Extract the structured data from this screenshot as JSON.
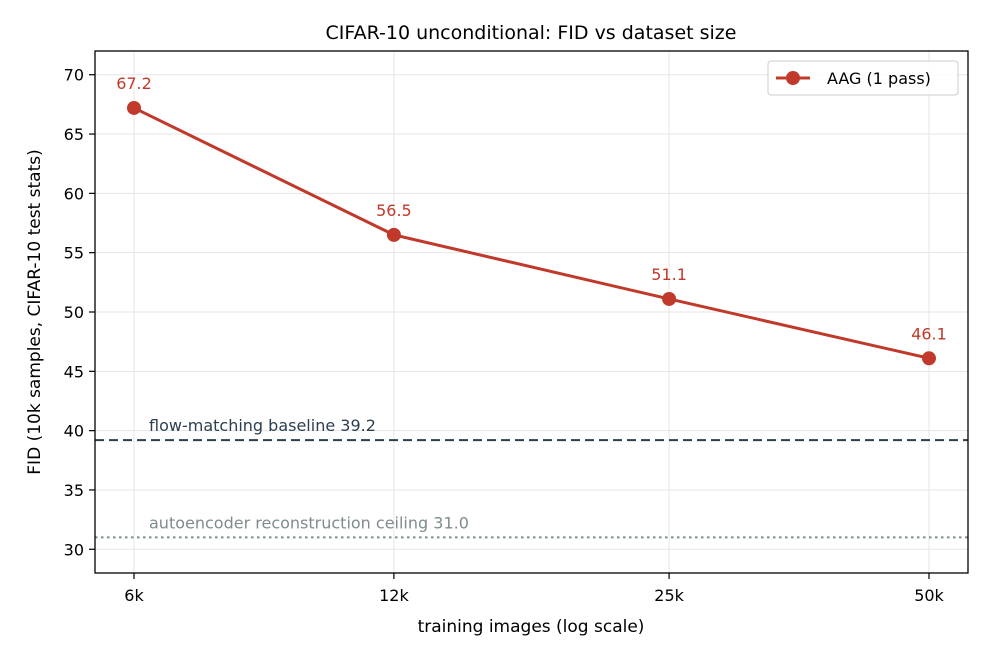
{
  "chart_data": {
    "type": "line",
    "title": "CIFAR-10 unconditional: FID vs dataset size",
    "xlabel": "training images (log scale)",
    "ylabel": "FID  (10k samples, CIFAR-10 test stats)",
    "x_scale": "log",
    "x": [
      6000,
      12000,
      25000,
      50000
    ],
    "x_tick_labels": [
      "6k",
      "12k",
      "25k",
      "50k"
    ],
    "ylim": [
      28,
      72
    ],
    "y_ticks": [
      30,
      35,
      40,
      45,
      50,
      55,
      60,
      65,
      70
    ],
    "grid": true,
    "legend_position": "top-right",
    "series": [
      {
        "name": "AAG (1 pass)",
        "values": [
          67.2,
          56.5,
          51.1,
          46.1
        ],
        "data_labels": [
          "67.2",
          "56.5",
          "51.1",
          "46.1"
        ],
        "color": "#c0392b",
        "marker": "circle"
      }
    ],
    "reference_lines": [
      {
        "label": "flow-matching baseline  39.2",
        "value": 39.2,
        "style": "dashed",
        "color": "#2c3e50"
      },
      {
        "label": "autoencoder reconstruction ceiling  31.0",
        "value": 31.0,
        "style": "dotted",
        "color": "#7f8c8d"
      }
    ]
  }
}
